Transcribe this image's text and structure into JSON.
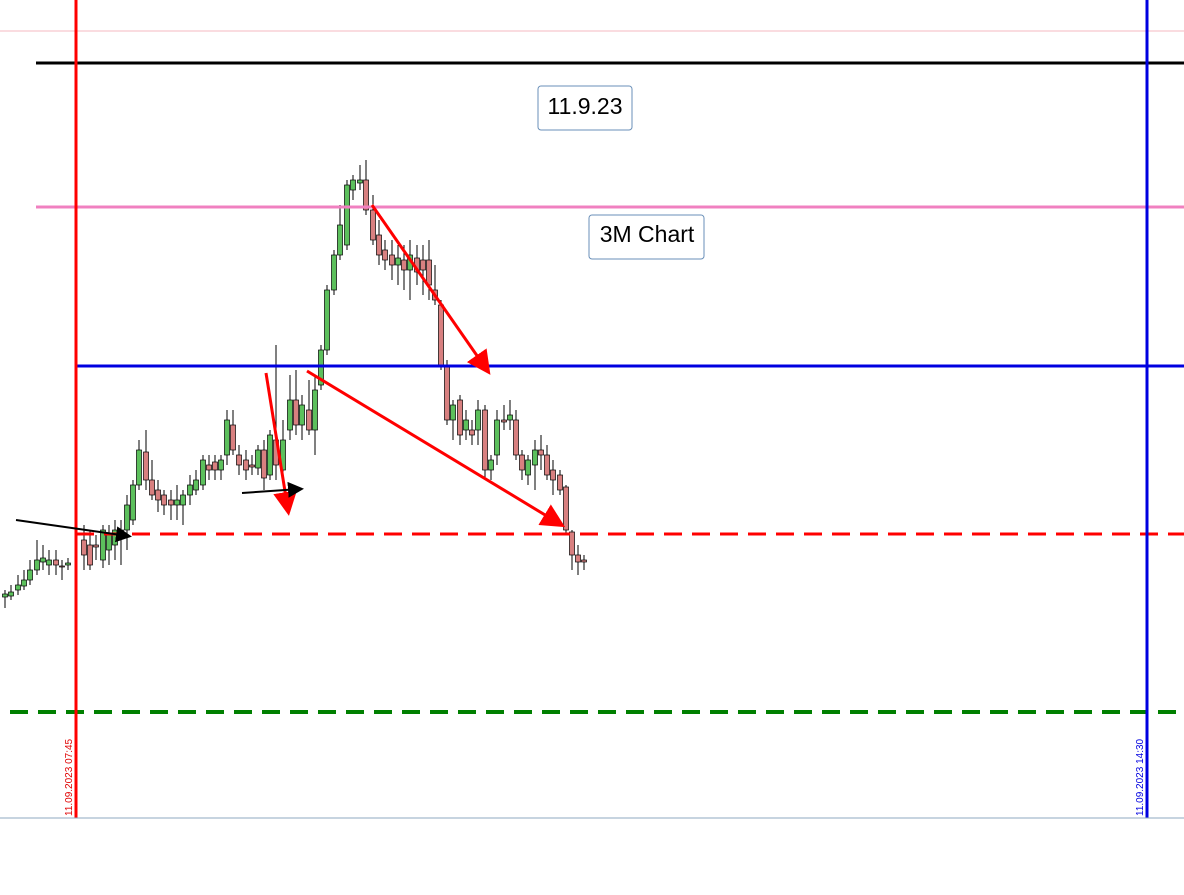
{
  "labels": {
    "date_box": "11.9.23",
    "chart_box": "3M Chart"
  },
  "vertical_lines": [
    {
      "label": "11.09.2023 07:45"
    },
    {
      "label": "11.09.2023 14:30"
    }
  ]
}
